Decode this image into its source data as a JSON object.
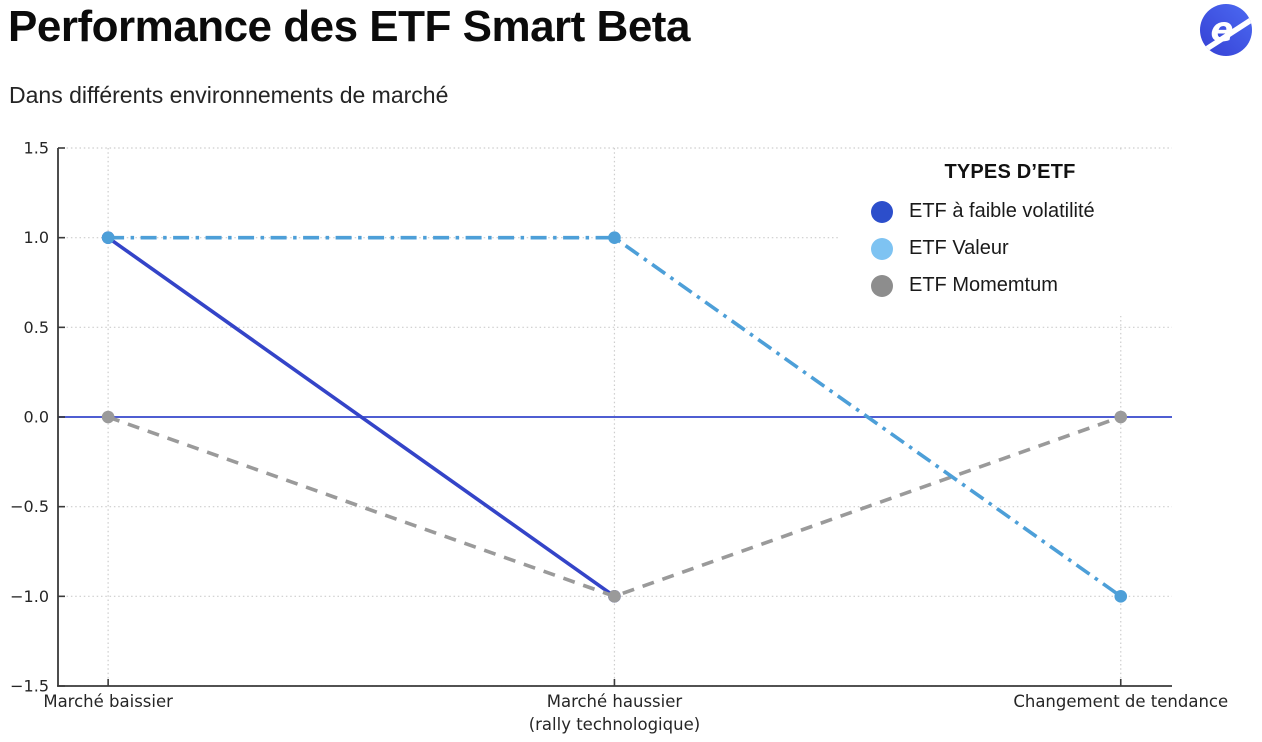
{
  "header": {
    "title": "Performance des ETF Smart Beta",
    "subtitle": "Dans différents environnements de marché",
    "logo": {
      "icon": "e-slash-logo",
      "color_left": "#3540d4",
      "color_right": "#4c6af2"
    }
  },
  "chart_data": {
    "type": "line",
    "title": "Performance des ETF Smart Beta",
    "subtitle": "Dans différents environnements de marché",
    "categories": [
      "Marché baissier",
      "Marché haussier\n(rally technologique)",
      "Changement de tendance"
    ],
    "xlabel": "",
    "ylabel": "",
    "ylim": [
      -1.5,
      1.5
    ],
    "yticks": [
      {
        "v": 1.5,
        "label": "1.5"
      },
      {
        "v": 1.0,
        "label": "1.0"
      },
      {
        "v": 0.5,
        "label": "0.5"
      },
      {
        "v": 0.0,
        "label": "0.0"
      },
      {
        "v": -0.5,
        "label": "−0.5"
      },
      {
        "v": -1.0,
        "label": "−1.0"
      },
      {
        "v": -1.5,
        "label": "−1.5"
      }
    ],
    "grid": {
      "style": "dotted",
      "color": "#cdcdcd",
      "vertical": true,
      "horizontal": true
    },
    "zero_line": {
      "y": 0.0,
      "color": "#4f5ed2",
      "width": 2
    },
    "axis_color": "#3a3a3a",
    "tick_label_color": "#262626",
    "tick_direction": "in",
    "legend": {
      "title": "TYPES D’ETF",
      "position": "upper right"
    },
    "series": [
      {
        "name": "ETF à faible volatilité",
        "values": [
          1.0,
          -1.0,
          null
        ],
        "line_color": "#3444c8",
        "legend_color": "#2c4ecb",
        "style": "solid",
        "marker": "circle"
      },
      {
        "name": "ETF Valeur",
        "values": [
          1.0,
          1.0,
          -1.0
        ],
        "line_color": "#4d9fd8",
        "legend_color": "#7ec3f2",
        "style": "dashdot",
        "marker": "circle"
      },
      {
        "name": "ETF Momemtum",
        "values": [
          0.0,
          -1.0,
          0.0
        ],
        "line_color": "#9a9a9a",
        "legend_color": "#8d8d8d",
        "style": "dashed",
        "marker": "circle"
      }
    ],
    "draw_order": [
      0,
      2,
      1
    ]
  }
}
